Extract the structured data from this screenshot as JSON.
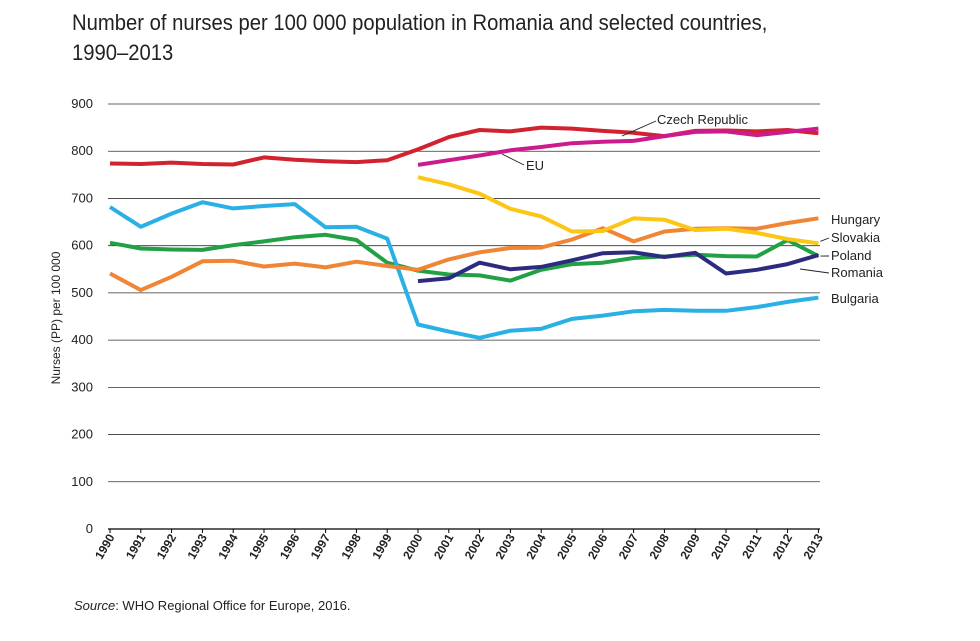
{
  "title": "Number of nurses per 100 000 population in Romania and selected countries, 1990–2013",
  "source": {
    "label": "Source",
    "text": ": WHO Regional Office for Europe, 2016."
  },
  "chart_data": {
    "type": "line",
    "title": "Number of nurses per 100 000 population in Romania and selected countries, 1990–2013",
    "ylabel": "Nurses (PP) per 100 000",
    "xlabel": "",
    "ylim": [
      0,
      900
    ],
    "yticks": [
      0,
      100,
      200,
      300,
      400,
      500,
      600,
      700,
      800,
      900
    ],
    "x": [
      "1990",
      "1991",
      "1992",
      "1993",
      "1994",
      "1995",
      "1996",
      "1997",
      "1998",
      "1999",
      "2000",
      "2001",
      "2002",
      "2003",
      "2004",
      "2005",
      "2006",
      "2007",
      "2008",
      "2009",
      "2010",
      "2011",
      "2012",
      "2013"
    ],
    "grid": "horizontal",
    "series": [
      {
        "name": "Czech Republic",
        "color": "#d1232f",
        "values": [
          774,
          773,
          776,
          773,
          772,
          787,
          782,
          779,
          777,
          781,
          804,
          830,
          845,
          842,
          850,
          848,
          843,
          839,
          832,
          843,
          844,
          842,
          845,
          838
        ]
      },
      {
        "name": "EU",
        "color": "#cc1b8c",
        "values": [
          null,
          null,
          null,
          null,
          null,
          null,
          null,
          null,
          null,
          null,
          771,
          781,
          791,
          802,
          809,
          817,
          820,
          822,
          832,
          841,
          842,
          834,
          841,
          848
        ]
      },
      {
        "name": "Hungary",
        "color": "#f08536",
        "values": [
          541,
          506,
          534,
          567,
          568,
          556,
          562,
          554,
          566,
          557,
          549,
          571,
          586,
          595,
          596,
          613,
          637,
          609,
          630,
          636,
          637,
          636,
          648,
          658
        ]
      },
      {
        "name": "Slovakia",
        "color": "#fcc615",
        "values": [
          null,
          null,
          null,
          null,
          null,
          null,
          null,
          null,
          null,
          null,
          745,
          730,
          710,
          678,
          662,
          630,
          631,
          658,
          655,
          633,
          636,
          627,
          614,
          605
        ]
      },
      {
        "name": "Poland",
        "color": "#21a045",
        "values": [
          606,
          594,
          592,
          591,
          601,
          609,
          618,
          623,
          612,
          564,
          547,
          539,
          537,
          526,
          549,
          561,
          564,
          574,
          577,
          581,
          578,
          577,
          612,
          578
        ]
      },
      {
        "name": "Romania",
        "color": "#2c2b7f",
        "values": [
          null,
          null,
          null,
          null,
          null,
          null,
          null,
          null,
          null,
          null,
          525,
          531,
          564,
          550,
          555,
          569,
          584,
          586,
          576,
          585,
          541,
          549,
          561,
          580
        ]
      },
      {
        "name": "Bulgaria",
        "color": "#2ab0e4",
        "values": [
          682,
          640,
          668,
          692,
          679,
          684,
          688,
          639,
          640,
          615,
          433,
          418,
          405,
          420,
          424,
          445,
          452,
          461,
          464,
          462,
          462,
          470,
          481,
          490
        ]
      }
    ]
  }
}
